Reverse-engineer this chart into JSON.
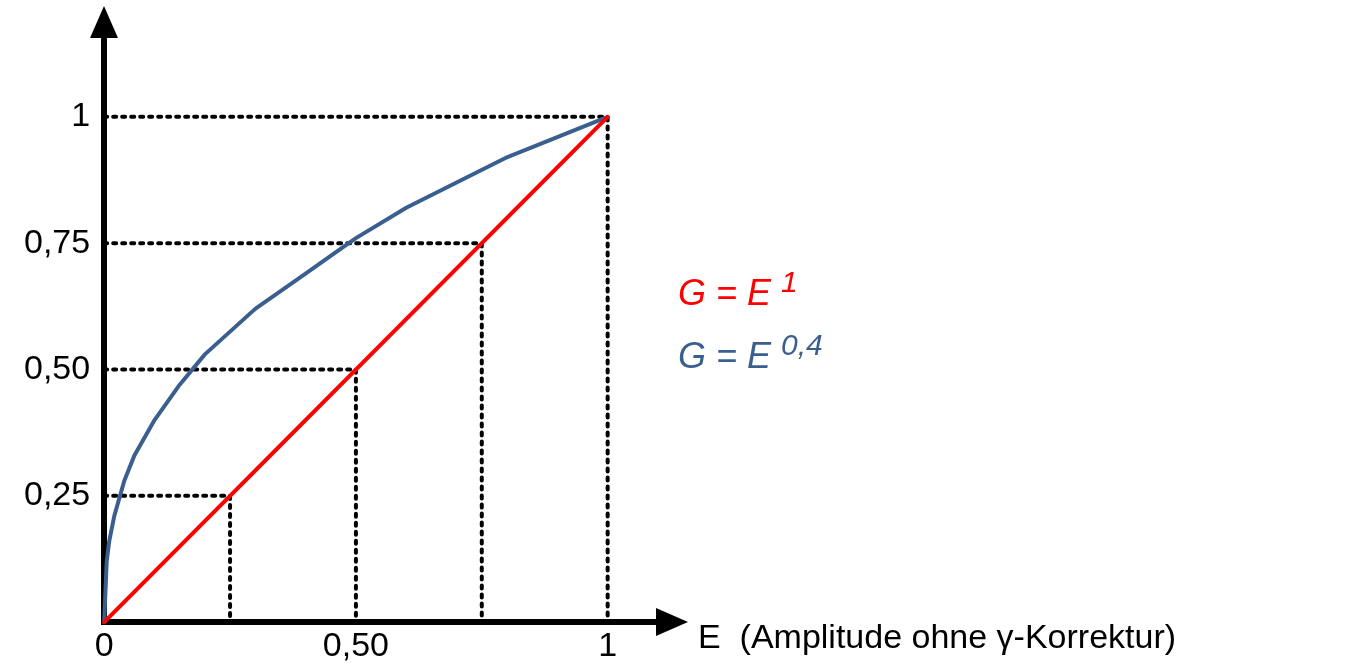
{
  "chart_data": {
    "type": "line",
    "xlabel": "E  (Amplitude ohne γ-Korrektur)",
    "xlim": [
      0,
      1.1
    ],
    "ylim": [
      0,
      1.16
    ],
    "xticks": [
      {
        "value": 0,
        "label": "0"
      },
      {
        "value": 0.5,
        "label": "0,50"
      },
      {
        "value": 1,
        "label": "1"
      }
    ],
    "yticks": [
      {
        "value": 0.25,
        "label": "0,25"
      },
      {
        "value": 0.5,
        "label": "0,50"
      },
      {
        "value": 0.75,
        "label": "0,75"
      },
      {
        "value": 1,
        "label": "1"
      }
    ],
    "legend": "right",
    "line_style": "solid",
    "marker": "none",
    "series": [
      {
        "name": "G = E $^{1}$",
        "color": "#ff0000",
        "x": [
          0,
          1
        ],
        "values": [
          0,
          1
        ]
      },
      {
        "name": "G = E $^{0,4}$",
        "color": "#3a5f8f",
        "x": [
          0,
          0.005,
          0.01,
          0.02,
          0.04,
          0.06,
          0.1,
          0.15,
          0.2,
          0.3,
          0.4,
          0.5,
          0.6,
          0.7,
          0.8,
          0.9,
          1
        ],
        "values": [
          0,
          0.12,
          0.16,
          0.21,
          0.28,
          0.33,
          0.4,
          0.47,
          0.53,
          0.62,
          0.69,
          0.76,
          0.82,
          0.87,
          0.92,
          0.96,
          1
        ]
      },
      {
        "color": "#000000",
        "line_style": "dotted",
        "x": [
          0,
          0.25,
          0.25
        ],
        "values": [
          0.25,
          0.25,
          0
        ]
      },
      {
        "color": "#000000",
        "line_style": "dotted",
        "x": [
          0,
          0.5,
          0.5
        ],
        "values": [
          0.5,
          0.5,
          0
        ]
      },
      {
        "color": "#000000",
        "line_style": "dotted",
        "x": [
          0,
          0.75,
          0.75
        ],
        "values": [
          0.75,
          0.75,
          0
        ]
      },
      {
        "color": "#000000",
        "line_style": "dotted",
        "x": [
          0,
          1,
          1
        ],
        "values": [
          1,
          1,
          0
        ]
      }
    ]
  }
}
